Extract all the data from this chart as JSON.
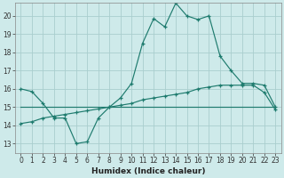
{
  "xlabel": "Humidex (Indice chaleur)",
  "bg_color": "#ceeaea",
  "grid_color": "#aacece",
  "line_color": "#1e7b6e",
  "xlim": [
    -0.5,
    23.5
  ],
  "ylim": [
    12.5,
    20.7
  ],
  "yticks": [
    13,
    14,
    15,
    16,
    17,
    18,
    19,
    20
  ],
  "xticks": [
    0,
    1,
    2,
    3,
    4,
    5,
    6,
    7,
    8,
    9,
    10,
    11,
    12,
    13,
    14,
    15,
    16,
    17,
    18,
    19,
    20,
    21,
    22,
    23
  ],
  "line1_x": [
    0,
    1,
    2,
    3,
    4,
    5,
    6,
    7,
    8,
    9,
    10,
    11,
    12,
    13,
    14,
    15,
    16,
    17,
    18,
    19,
    20,
    21,
    22,
    23
  ],
  "line1_y": [
    16.0,
    15.85,
    15.2,
    14.4,
    14.4,
    13.0,
    13.1,
    14.4,
    15.0,
    15.5,
    16.3,
    18.5,
    19.85,
    19.4,
    20.7,
    20.0,
    19.8,
    20.0,
    17.8,
    17.0,
    16.3,
    16.3,
    16.2,
    15.0
  ],
  "line2_x": [
    0,
    1,
    2,
    3,
    4,
    5,
    6,
    7,
    8,
    9,
    10,
    11,
    12,
    13,
    14,
    15,
    16,
    17,
    18,
    19,
    20,
    21,
    22,
    23
  ],
  "line2_y": [
    15.0,
    15.0,
    15.0,
    15.0,
    15.0,
    15.0,
    15.0,
    15.0,
    15.0,
    15.0,
    15.0,
    15.0,
    15.0,
    15.0,
    15.0,
    15.0,
    15.0,
    15.0,
    15.0,
    15.0,
    15.0,
    15.0,
    15.0,
    15.0
  ],
  "line3_x": [
    0,
    1,
    2,
    3,
    4,
    5,
    6,
    7,
    8,
    9,
    10,
    11,
    12,
    13,
    14,
    15,
    16,
    17,
    18,
    19,
    20,
    21,
    22,
    23
  ],
  "line3_y": [
    14.1,
    14.2,
    14.4,
    14.5,
    14.6,
    14.7,
    14.8,
    14.9,
    15.0,
    15.1,
    15.2,
    15.4,
    15.5,
    15.6,
    15.7,
    15.8,
    16.0,
    16.1,
    16.2,
    16.2,
    16.2,
    16.2,
    15.8,
    14.85
  ]
}
